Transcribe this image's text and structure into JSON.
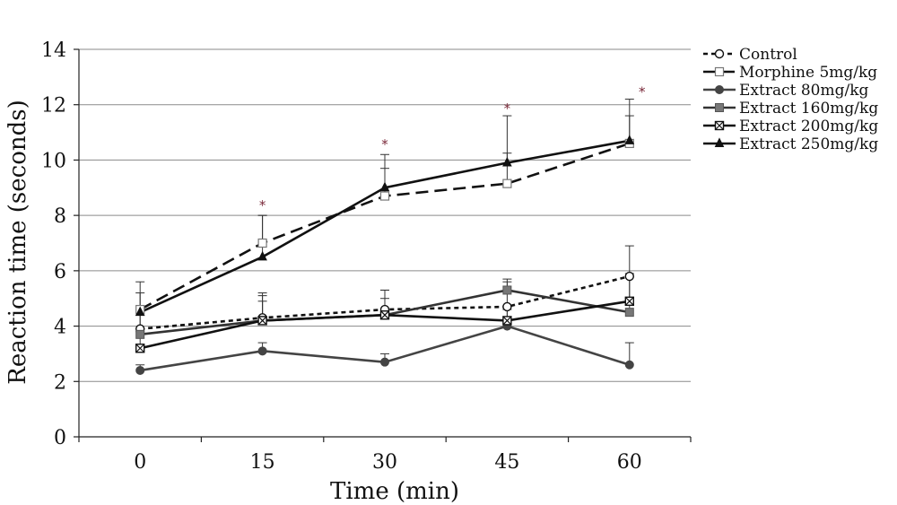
{
  "chart_data": {
    "type": "line",
    "title": "",
    "xlabel": "Time (min)",
    "ylabel": "Reaction time (seconds)",
    "x": [
      0,
      15,
      30,
      45,
      60
    ],
    "x_tick_labels": [
      "0",
      "15",
      "30",
      "45",
      "60"
    ],
    "ylim": [
      0,
      14
    ],
    "y_ticks": [
      0,
      2,
      4,
      6,
      8,
      10,
      12,
      14
    ],
    "y_tick_labels": [
      "0",
      "2",
      "4",
      "6",
      "8",
      "10",
      "12",
      "14"
    ],
    "grid": "horizontal",
    "legend_position": "top-right",
    "series": [
      {
        "name": "Control",
        "values": [
          3.9,
          4.3,
          4.6,
          4.7,
          5.8
        ],
        "errors": [
          0.5,
          0.8,
          0.7,
          0.9,
          1.1
        ],
        "color": "#111111",
        "line": "short-dash",
        "marker": "open-circle"
      },
      {
        "name": "Morphine 5mg/kg",
        "values": [
          4.6,
          7.0,
          8.7,
          9.15,
          10.6
        ],
        "errors": [
          1.0,
          1.0,
          1.0,
          1.1,
          1.0
        ],
        "color": "#111111",
        "line": "long-dash",
        "marker": "open-square"
      },
      {
        "name": "Extract 80mg/kg",
        "values": [
          2.4,
          3.1,
          2.7,
          4.0,
          2.6
        ],
        "errors": [
          0.2,
          0.3,
          0.3,
          0.6,
          0.8
        ],
        "color": "#444444",
        "line": "solid",
        "marker": "filled-circle"
      },
      {
        "name": "Extract 160mg/kg",
        "values": [
          3.7,
          4.2,
          4.4,
          5.3,
          4.5
        ],
        "errors": [
          0.9,
          1.0,
          0.9,
          0.4,
          1.4
        ],
        "color": "#333333",
        "line": "solid",
        "marker": "filled-square"
      },
      {
        "name": "Extract 200mg/kg",
        "values": [
          3.2,
          4.2,
          4.4,
          4.2,
          4.9
        ],
        "errors": [
          0.6,
          0.7,
          0.6,
          0.5,
          0.9
        ],
        "color": "#111111",
        "line": "solid",
        "marker": "x-square"
      },
      {
        "name": "Extract 250mg/kg",
        "values": [
          4.5,
          6.5,
          9.0,
          9.9,
          10.7
        ],
        "errors": [
          0.7,
          1.5,
          1.2,
          1.7,
          1.5
        ],
        "color": "#111111",
        "line": "solid",
        "marker": "triangle"
      }
    ],
    "annotations": [
      {
        "text": "*",
        "x": 15,
        "y": 8.4
      },
      {
        "text": "*",
        "x": 30,
        "y": 10.6
      },
      {
        "text": "*",
        "x": 45,
        "y": 11.9
      },
      {
        "text": "*",
        "x": 60,
        "y": 12.5
      }
    ]
  }
}
